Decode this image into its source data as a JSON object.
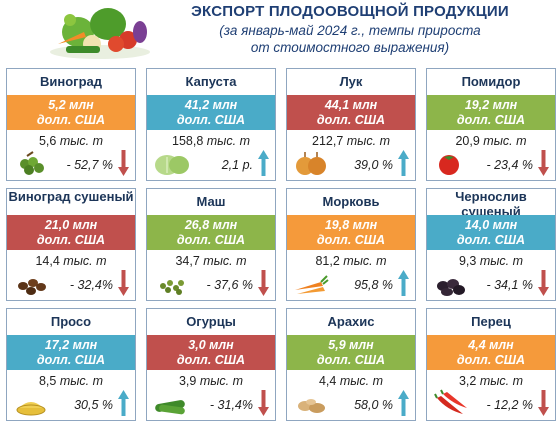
{
  "header": {
    "title": "ЭКСПОРТ ПЛОДООВОЩНОЙ ПРОДУКЦИИ",
    "subtitle_line1": "(за январь-май 2024 г., темпы прироста",
    "subtitle_line2": "от стоимостного выражения)"
  },
  "colors": {
    "orange": "#f59a3b",
    "teal": "#4aabc8",
    "red": "#c0504d",
    "green": "#8db54a",
    "border": "#8fa6c0",
    "title": "#1f3f74",
    "arrow_up": "#4aabc8",
    "arrow_down": "#c0504d"
  },
  "cards": [
    {
      "name": "Виноград",
      "value": "5,2 млн",
      "unit": "долл. США",
      "qty_num": "5,6",
      "qty_unit": "тыс. т",
      "change": "- 52,7 %",
      "trend": "down",
      "color": "orange",
      "icon": "grapes-icon"
    },
    {
      "name": "Капуста",
      "value": "41,2 млн",
      "unit": "долл. США",
      "qty_num": "158,8",
      "qty_unit": "тыс. т",
      "change": "2,1 р.",
      "trend": "up",
      "color": "teal",
      "icon": "cabbage-icon"
    },
    {
      "name": "Лук",
      "value": "44,1 млн",
      "unit": "долл. США",
      "qty_num": "212,7",
      "qty_unit": "тыс. т",
      "change": "39,0 %",
      "trend": "up",
      "color": "red",
      "icon": "onion-icon"
    },
    {
      "name": "Помидор",
      "value": "19,2 млн",
      "unit": "долл. США",
      "qty_num": "20,9",
      "qty_unit": "тыс. т",
      "change": "- 23,4 %",
      "trend": "down",
      "color": "green",
      "icon": "tomato-icon"
    },
    {
      "name": "Виноград сушеный",
      "value": "21,0 млн",
      "unit": "долл. США",
      "qty_num": "14,4",
      "qty_unit": "тыс. т",
      "change": "- 32,4%",
      "trend": "down",
      "color": "red",
      "icon": "raisins-icon"
    },
    {
      "name": "Маш",
      "value": "26,8 млн",
      "unit": "долл. США",
      "qty_num": "34,7",
      "qty_unit": "тыс. т",
      "change": "- 37,6 %",
      "trend": "down",
      "color": "green",
      "icon": "mung-bean-icon"
    },
    {
      "name": "Морковь",
      "value": "19,8 млн",
      "unit": "долл. США",
      "qty_num": "81,2",
      "qty_unit": "тыс. т",
      "change": "95,8 %",
      "trend": "up",
      "color": "orange",
      "icon": "carrot-icon"
    },
    {
      "name": "Чернослив сушеный",
      "value": "14,0 млн",
      "unit": "долл. США",
      "qty_num": "9,3",
      "qty_unit": "тыс. т",
      "change": "- 34,1 %",
      "trend": "down",
      "color": "teal",
      "icon": "prunes-icon"
    },
    {
      "name": "Просо",
      "value": "17,2 млн",
      "unit": "долл. США",
      "qty_num": "8,5",
      "qty_unit": "тыс. т",
      "change": "30,5 %",
      "trend": "up",
      "color": "teal",
      "icon": "millet-icon"
    },
    {
      "name": "Огурцы",
      "value": "3,0 млн",
      "unit": "долл. США",
      "qty_num": "3,9",
      "qty_unit": "тыс. т",
      "change": "- 31,4%",
      "trend": "down",
      "color": "red",
      "icon": "cucumber-icon"
    },
    {
      "name": "Арахис",
      "value": "5,9 млн",
      "unit": "долл. США",
      "qty_num": "4,4",
      "qty_unit": "тыс. т",
      "change": "58,0 %",
      "trend": "up",
      "color": "green",
      "icon": "peanut-icon"
    },
    {
      "name": "Перец",
      "value": "4,4 млн",
      "unit": "долл. США",
      "qty_num": "3,2",
      "qty_unit": "тыс. т",
      "change": "- 12,2 %",
      "trend": "down",
      "color": "orange",
      "icon": "pepper-icon"
    }
  ]
}
